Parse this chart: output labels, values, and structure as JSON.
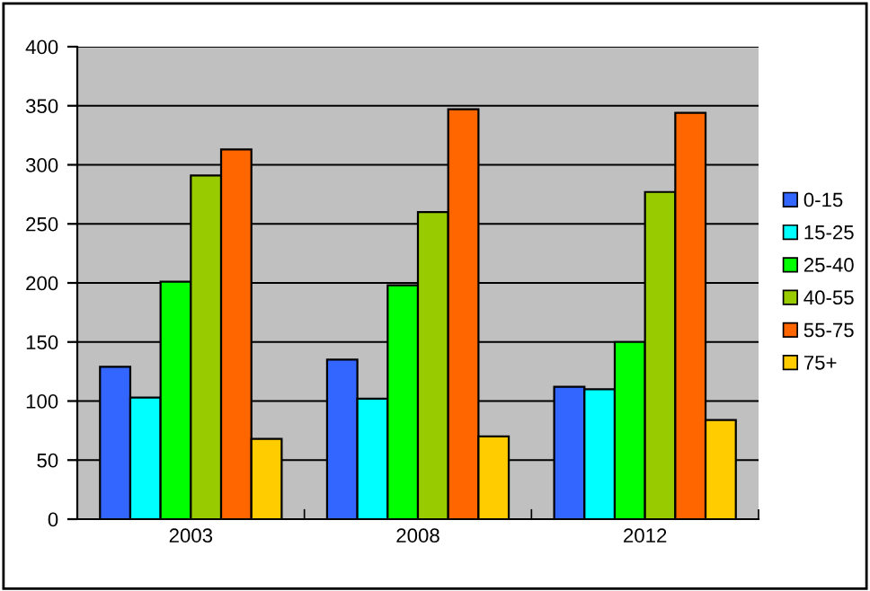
{
  "chart_data": {
    "type": "bar",
    "categories": [
      "2003",
      "2008",
      "2012"
    ],
    "series": [
      {
        "name": "0-15",
        "color": "#3366ff",
        "values": [
          129,
          135,
          112
        ]
      },
      {
        "name": "15-25",
        "color": "#00ffff",
        "values": [
          103,
          102,
          110
        ]
      },
      {
        "name": "25-40",
        "color": "#00ff00",
        "values": [
          201,
          198,
          150
        ]
      },
      {
        "name": "40-55",
        "color": "#99cc00",
        "values": [
          291,
          260,
          277
        ]
      },
      {
        "name": "55-75",
        "color": "#ff6600",
        "values": [
          313,
          347,
          344
        ]
      },
      {
        "name": "75+",
        "color": "#ffcc00",
        "values": [
          68,
          70,
          84
        ]
      }
    ],
    "ylim": [
      0,
      400
    ],
    "yticks": [
      0,
      50,
      100,
      150,
      200,
      250,
      300,
      350,
      400
    ],
    "grid": "y",
    "legend": "right"
  }
}
